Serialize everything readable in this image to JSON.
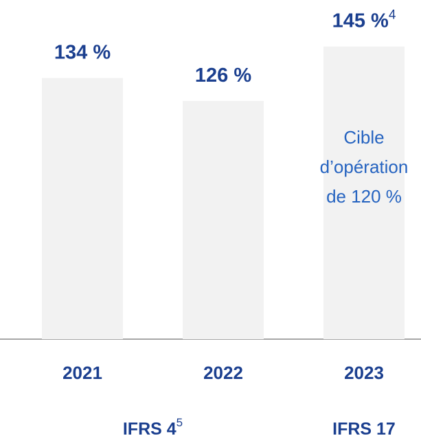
{
  "chart_data": {
    "type": "bar",
    "categories": [
      "2021",
      "2022",
      "2023"
    ],
    "values": [
      134,
      126,
      145
    ],
    "value_labels": [
      "134 %",
      "126 %",
      "145 %"
    ],
    "value_label_notes": [
      null,
      null,
      "4"
    ],
    "color": "#f2f2f2",
    "ylim": [
      43,
      160
    ],
    "annotation": [
      "Cible",
      "d’opération",
      "de 120 %"
    ],
    "groups": [
      {
        "label": "IFRS 4",
        "note": "5",
        "categories": [
          0,
          1
        ]
      },
      {
        "label": "IFRS 17",
        "categories": [
          2
        ]
      }
    ]
  }
}
